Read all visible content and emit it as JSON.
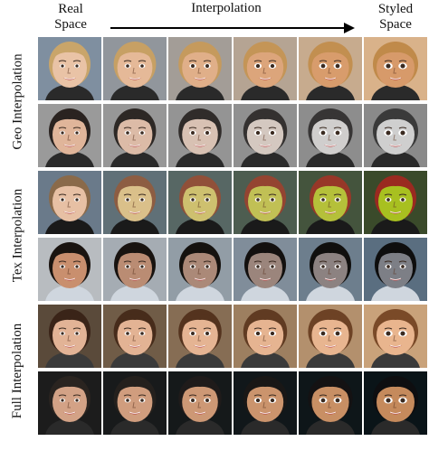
{
  "header": {
    "real_space": "Real\nSpace",
    "interpolation": "Interpolation",
    "styled_space": "Styled\nSpace"
  },
  "side_labels": {
    "geo": "Geo Interpolation",
    "tex": "Tex Interpolation",
    "full": "Full Interpolation"
  },
  "rows": [
    {
      "bg": "#7f8fa0",
      "skin": "#e9c3a6",
      "hair": "#c9a56a",
      "shirt": "#2a2a2a",
      "style": "#d79a6a",
      "hairStyle": "#c08a4a",
      "bgStyle": "#d9b28a",
      "mode": "geo"
    },
    {
      "bg": "#9a9a9a",
      "skin": "#e0b59a",
      "hair": "#2a2320",
      "shirt": "#2a2a2a",
      "style": "#cfcfcf",
      "hairStyle": "#3a3a3a",
      "bgStyle": "#8a8a8a",
      "mode": "geo"
    },
    {
      "bg": "#6a7a8a",
      "skin": "#e7c0a4",
      "hair": "#8a6a4a",
      "shirt": "#1a1a1a",
      "style": "#a8c020",
      "hairStyle": "#9a2a20",
      "bgStyle": "#3a4a2a",
      "mode": "tex"
    },
    {
      "bg": "#b8bcc0",
      "skin": "#c98f6e",
      "hair": "#1a1410",
      "shirt": "#cfd6de",
      "style": "#7d7f86",
      "hairStyle": "#0e0e0e",
      "bgStyle": "#5a6e80",
      "mode": "tex"
    },
    {
      "bg": "#5a4a3a",
      "skin": "#e2b396",
      "hair": "#3a2418",
      "shirt": "#3a3a3a",
      "style": "#e9b58e",
      "hairStyle": "#7a4a28",
      "bgStyle": "#c9a27a",
      "mode": "full"
    },
    {
      "bg": "#1c1c1c",
      "skin": "#d3a286",
      "hair": "#2a2420",
      "shirt": "#2a2a2a",
      "style": "#c58a5c",
      "hairStyle": "#0e0e10",
      "bgStyle": "#0a1418",
      "mode": "full"
    }
  ]
}
